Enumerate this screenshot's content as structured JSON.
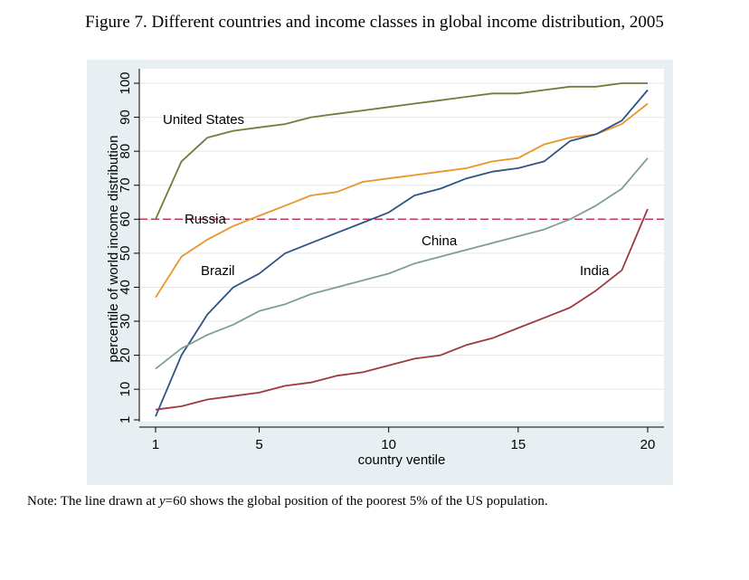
{
  "figure": {
    "title": "Figure 7. Different countries and income classes in global income distribution, 2005",
    "note_prefix": "Note: The line drawn at ",
    "note_var": "y",
    "note_suffix": "=60 shows the global position of the poorest 5% of  the US population."
  },
  "colors": {
    "panel_background": "#e8eff2",
    "plot_background": "#ffffff",
    "grid": "#e3e8ea",
    "reference_line": "#c4365d"
  },
  "chart_data": {
    "type": "line",
    "xlabel": "country ventile",
    "ylabel": "percentile of world income distribution",
    "xlim": [
      1,
      20
    ],
    "ylim": [
      1,
      100
    ],
    "x_ticks": [
      1,
      5,
      10,
      15,
      20
    ],
    "y_ticks": [
      1,
      10,
      20,
      30,
      40,
      50,
      60,
      70,
      80,
      90,
      100
    ],
    "grid": true,
    "reference_line": {
      "y": 60,
      "style": "dashed"
    },
    "x": [
      1,
      2,
      3,
      4,
      5,
      6,
      7,
      8,
      9,
      10,
      11,
      12,
      13,
      14,
      15,
      16,
      17,
      18,
      19,
      20
    ],
    "series": [
      {
        "name": "United States",
        "color": "#6b7f3a",
        "values": [
          60,
          77,
          84,
          86,
          87,
          88,
          90,
          91,
          92,
          93,
          94,
          95,
          96,
          97,
          97,
          98,
          99,
          99,
          100,
          100
        ]
      },
      {
        "name": "Russia",
        "color": "#e8952a",
        "values": [
          37,
          49,
          54,
          58,
          61,
          64,
          67,
          68,
          71,
          72,
          73,
          74,
          75,
          77,
          78,
          82,
          84,
          85,
          88,
          94
        ]
      },
      {
        "name": "Brazil",
        "color": "#2e5484",
        "values": [
          2,
          20,
          32,
          40,
          44,
          50,
          53,
          56,
          59,
          62,
          67,
          69,
          72,
          74,
          75,
          77,
          83,
          85,
          89,
          98
        ]
      },
      {
        "name": "China",
        "color": "#7e9f94",
        "values": [
          16,
          22,
          26,
          29,
          33,
          35,
          38,
          40,
          42,
          44,
          47,
          49,
          51,
          53,
          55,
          57,
          60,
          64,
          69,
          78
        ]
      },
      {
        "name": "India",
        "color": "#9e3a3e",
        "values": [
          4,
          5,
          7,
          8,
          9,
          11,
          12,
          14,
          15,
          17,
          19,
          20,
          23,
          25,
          28,
          31,
          34,
          39,
          45,
          63
        ]
      }
    ]
  }
}
